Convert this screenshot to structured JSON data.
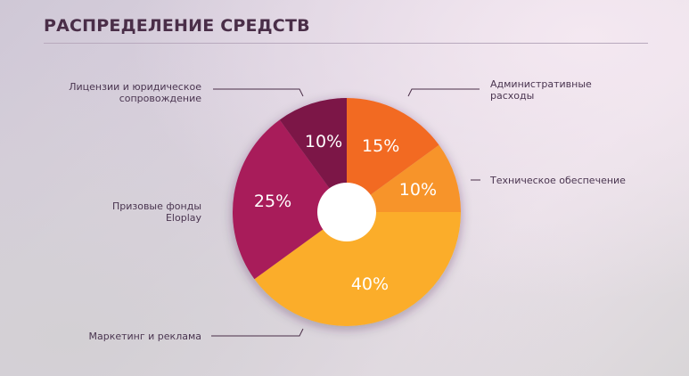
{
  "chart_data": {
    "type": "pie",
    "title": "РАСПРЕДЕЛЕНИЕ СРЕДСТВ",
    "donut": true,
    "slices": [
      {
        "label": "Административные расходы",
        "value": 15,
        "value_label": "15%",
        "color": "#f26a24"
      },
      {
        "label": "Техническое обеспечение",
        "value": 10,
        "value_label": "10%",
        "color": "#f7942b"
      },
      {
        "label": "Маркетинг и реклама",
        "value": 40,
        "value_label": "40%",
        "color": "#fbad2a"
      },
      {
        "label": "Призовые фонды Eloplay",
        "value": 25,
        "value_label": "25%",
        "color": "#a81e5a"
      },
      {
        "label": "Лицензии и юридическое сопровождение",
        "value": 10,
        "value_label": "10%",
        "color": "#7b1347"
      }
    ]
  }
}
